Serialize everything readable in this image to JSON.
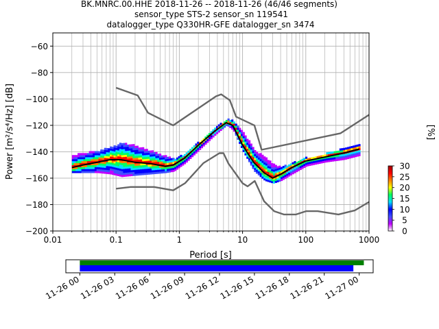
{
  "title_lines": [
    "BK.MNRC.00.HHE   2018-11-26 -- 2018-11-26  (46/46 segments)",
    "sensor_type STS-2 sensor_sn 119541",
    "datalogger_type Q330HR-GFE datalogger_sn 3474"
  ],
  "chart_data": [
    {
      "type": "heatmap",
      "title": "BK.MNRC.00.HHE   2018-11-26 -- 2018-11-26  (46/46 segments)",
      "xlabel": "Period [s]",
      "ylabel": "Power [m²/s⁴/Hz] [dB]",
      "xscale": "log",
      "xlim": [
        0.01,
        1000
      ],
      "ylim": [
        -200,
        -50
      ],
      "xticks": [
        0.01,
        0.1,
        1,
        10,
        100,
        1000
      ],
      "xtick_labels": [
        "0.01",
        "0.1",
        "1",
        "10",
        "100",
        "1000"
      ],
      "yticks": [
        -200,
        -180,
        -160,
        -140,
        -120,
        -100,
        -80,
        -60
      ],
      "ytick_labels": [
        "−200",
        "−180",
        "−160",
        "−140",
        "−120",
        "−100",
        "−80",
        "−60"
      ],
      "grid": true,
      "colorbar": {
        "label": "[%]",
        "range": [
          0,
          30
        ],
        "ticks": [
          0,
          5,
          10,
          15,
          20,
          25,
          30
        ],
        "tick_labels": [
          "0",
          "5",
          "10",
          "15",
          "20",
          "25",
          "30"
        ],
        "colors": [
          "#ffffff",
          "#c000ff",
          "#4050ff",
          "#0000ff",
          "#00e0ff",
          "#00ff60",
          "#ffff00",
          "#ff8000",
          "#ff0000",
          "#a00000"
        ]
      },
      "mode_curve": {
        "name": "mode",
        "x": [
          0.02,
          0.03,
          0.05,
          0.08,
          0.12,
          0.2,
          0.35,
          0.6,
          0.8,
          1.2,
          2,
          3.5,
          5.5,
          7,
          10,
          15,
          22,
          30,
          40,
          60,
          100,
          200,
          400,
          700
        ],
        "y": [
          -152,
          -150,
          -148,
          -146,
          -146,
          -148,
          -149,
          -151,
          -150,
          -145,
          -135,
          -125,
          -118,
          -120,
          -135,
          -148,
          -156,
          -160,
          -157,
          -152,
          -147,
          -144,
          -141,
          -138
        ]
      },
      "density_band": {
        "x": [
          0.02,
          0.05,
          0.08,
          0.12,
          0.2,
          0.35,
          0.6,
          0.8,
          1.2,
          2,
          3.5,
          5.5,
          7,
          10,
          15,
          22,
          30,
          40,
          60,
          100,
          200,
          400,
          700
        ],
        "upper": [
          -143,
          -140,
          -137,
          -134,
          -136,
          -140,
          -144,
          -146,
          -142,
          -133,
          -123,
          -116,
          -117,
          -126,
          -139,
          -145,
          -150,
          -152,
          -149,
          -145,
          -142,
          -138,
          -135
        ],
        "lower": [
          -156,
          -156,
          -157,
          -159,
          -158,
          -157,
          -156,
          -155,
          -149,
          -139,
          -128,
          -120,
          -124,
          -140,
          -155,
          -162,
          -164,
          -162,
          -157,
          -151,
          -148,
          -146,
          -143
        ]
      },
      "noise_models": [
        {
          "name": "NHNM",
          "x": [
            0.1,
            0.22,
            0.32,
            0.8,
            3.8,
            4.6,
            6.3,
            7.9,
            15.4,
            20,
            354.8,
            1000
          ],
          "y": [
            -91.5,
            -97.4,
            -110.5,
            -120,
            -98,
            -96.5,
            -101,
            -113.5,
            -120,
            -138.5,
            -126,
            -112
          ]
        },
        {
          "name": "NLNM",
          "x": [
            0.1,
            0.17,
            0.4,
            0.8,
            1.24,
            2.4,
            4.3,
            5,
            6,
            10,
            12,
            15.6,
            21.9,
            31.6,
            45,
            70,
            101,
            154,
            328,
            600,
            1000
          ],
          "y": [
            -168,
            -166.7,
            -166.7,
            -169.2,
            -163.7,
            -148.6,
            -141.1,
            -141.1,
            -149,
            -163.8,
            -166.2,
            -162.1,
            -177.5,
            -185,
            -187.5,
            -187.5,
            -185,
            -185,
            -187.5,
            -184.4,
            -178
          ]
        }
      ]
    },
    {
      "type": "timeline",
      "xtick_labels": [
        "11-26 00",
        "11-26 03",
        "11-26 06",
        "11-26 09",
        "11-26 12",
        "11-26 15",
        "11-26 18",
        "11-26 21",
        "11-27 00"
      ],
      "xlim_hours": [
        -1.2,
        25.2
      ],
      "bars": [
        {
          "name": "data",
          "color": "#008000",
          "start_hour": 0,
          "end_hour": 24.4
        },
        {
          "name": "psd",
          "color": "#0000ff",
          "start_hour": 0,
          "end_hour": 23.5
        }
      ]
    }
  ]
}
